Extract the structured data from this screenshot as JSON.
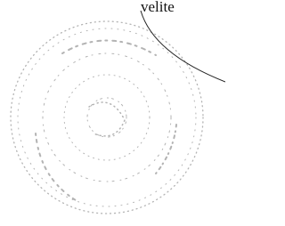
{
  "document": {
    "text": "velite"
  }
}
